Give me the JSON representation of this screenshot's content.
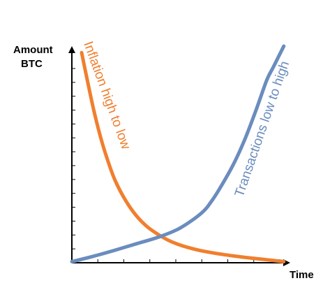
{
  "chart_data": {
    "type": "line",
    "ylabel": [
      "Amount",
      "BTC"
    ],
    "xlabel": "Time",
    "xlim": [
      0,
      10
    ],
    "ylim": [
      0,
      10
    ],
    "grid": false,
    "legend": "none",
    "y_ticks": 14,
    "x_ticks": 8,
    "series": [
      {
        "label": "Inflation high to low",
        "color": "#f07f2e",
        "x": [
          0.45,
          0.7,
          1.0,
          1.3,
          1.6,
          2.0,
          2.5,
          3.0,
          3.5,
          4.0,
          4.5,
          5.0,
          5.5,
          6.0,
          7.0,
          8.0,
          9.0,
          9.8
        ],
        "y": [
          9.7,
          8.5,
          7.1,
          5.9,
          4.9,
          3.8,
          2.85,
          2.15,
          1.65,
          1.3,
          1.02,
          0.82,
          0.67,
          0.55,
          0.38,
          0.25,
          0.14,
          0.05
        ]
      },
      {
        "label": "Transactions low to high",
        "color": "#6b8cbe",
        "x": [
          0,
          1,
          2,
          3,
          4,
          5,
          6,
          6.5,
          7,
          7.5,
          8,
          8.5,
          9,
          9.3,
          9.6,
          9.8
        ],
        "y": [
          0.05,
          0.3,
          0.58,
          0.88,
          1.18,
          1.6,
          2.3,
          2.9,
          3.7,
          4.6,
          5.7,
          7.0,
          8.4,
          9.0,
          9.6,
          10.0
        ]
      }
    ]
  }
}
